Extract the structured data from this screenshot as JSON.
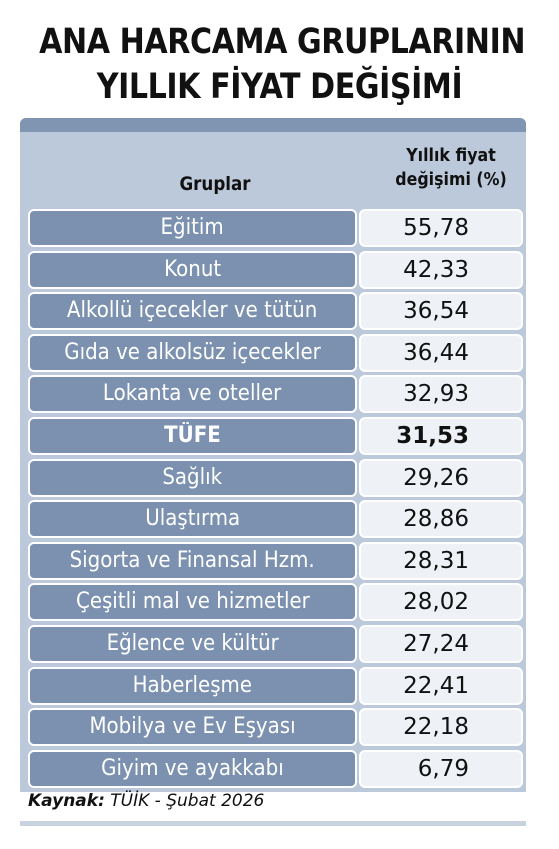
{
  "title": [
    "ANA HARCAMA GRUPLARININ",
    "YILLIK FİYAT DEĞİŞİMİ"
  ],
  "header": {
    "col1": "Gruplar",
    "col2_line1": "Yıllık fiyat",
    "col2_line2": "değişimi (%)"
  },
  "chart_data": {
    "type": "table",
    "title": "ANA HARCAMA GRUPLARININ YILLIK FİYAT DEĞİŞİMİ",
    "columns": [
      "Gruplar",
      "Yıllık fiyat değişimi (%)"
    ],
    "rows": [
      {
        "label": "Eğitim",
        "value": "55,78"
      },
      {
        "label": "Konut",
        "value": "42,33"
      },
      {
        "label": "Alkollü içecekler ve tütün",
        "value": "36,54"
      },
      {
        "label": "Gıda ve alkolsüz içecekler",
        "value": "36,44"
      },
      {
        "label": "Lokanta ve oteller",
        "value": "32,93"
      },
      {
        "label": "TÜFE",
        "value": "31,53",
        "bold": true
      },
      {
        "label": "Sağlık",
        "value": "29,26"
      },
      {
        "label": "Ulaştırma",
        "value": "28,86"
      },
      {
        "label": "Sigorta ve Finansal Hzm.",
        "value": "28,31"
      },
      {
        "label": "Çeşitli mal ve hizmetler",
        "value": "28,02"
      },
      {
        "label": "Eğlence ve kültür",
        "value": "27,24"
      },
      {
        "label": "Haberleşme",
        "value": "22,41"
      },
      {
        "label": "Mobilya ve Ev Eşyası",
        "value": "22,18"
      },
      {
        "label": "Giyim ve ayakkabı",
        "value": "6,79"
      }
    ]
  },
  "source": {
    "label": "Kaynak:",
    "text": " TÜİK - Şubat 2026"
  },
  "colors": {
    "category_bg": "#7b91af",
    "value_bg": "#eef2f7",
    "panel_bg": "#bcc9da",
    "panel_top": "#7f95b2"
  }
}
